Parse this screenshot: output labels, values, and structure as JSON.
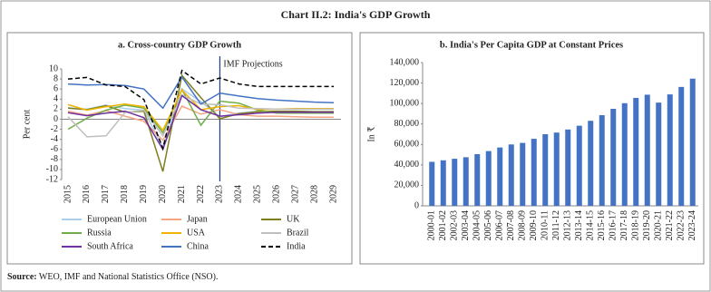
{
  "title": "Chart II.2: India's GDP Growth",
  "source_label": "Source:",
  "source": "WEO, IMF and National Statistics Office (NSO).",
  "chart_data": [
    {
      "type": "line",
      "title": "a. Cross-country GDP Growth",
      "y_label": "Per cent",
      "categories": [
        "2015",
        "2016",
        "2017",
        "2018",
        "2019",
        "2020",
        "2021",
        "2022",
        "2023",
        "2024",
        "2025",
        "2026",
        "2027",
        "2028",
        "2029"
      ],
      "annotation": {
        "text": "IMF Projections",
        "x": "2023"
      },
      "ylim": [
        -12,
        10
      ],
      "yticks": [
        -12,
        -10,
        -8,
        -6,
        -4,
        -2,
        0,
        2,
        4,
        6,
        8,
        10
      ],
      "legend": "bottom",
      "series": [
        {
          "name": "European Union",
          "color": "#a9cfe9",
          "values": [
            2.3,
            2.0,
            2.8,
            2.1,
            1.8,
            -5.6,
            6.0,
            3.5,
            0.5,
            1.2,
            1.6,
            1.5,
            1.4,
            1.3,
            1.3
          ]
        },
        {
          "name": "Japan",
          "color": "#f4a582",
          "values": [
            1.6,
            0.8,
            1.7,
            0.6,
            -0.4,
            -4.2,
            2.6,
            1.0,
            1.9,
            0.9,
            0.6,
            0.6,
            0.5,
            0.4,
            0.4
          ]
        },
        {
          "name": "UK",
          "color": "#7f7f1f",
          "values": [
            2.2,
            1.9,
            2.7,
            1.4,
            1.6,
            -10.4,
            8.7,
            4.3,
            0.1,
            1.1,
            1.5,
            1.6,
            1.6,
            1.5,
            1.5
          ]
        },
        {
          "name": "Russia",
          "color": "#70ad47",
          "values": [
            -2.0,
            0.2,
            1.8,
            2.8,
            2.2,
            -2.7,
            5.9,
            -1.2,
            3.6,
            3.2,
            1.8,
            1.2,
            1.2,
            1.2,
            1.2
          ]
        },
        {
          "name": "USA",
          "color": "#f0b400",
          "values": [
            2.9,
            1.8,
            2.5,
            3.0,
            2.5,
            -2.2,
            5.8,
            1.9,
            2.5,
            2.7,
            1.9,
            2.0,
            2.1,
            2.1,
            2.1
          ]
        },
        {
          "name": "Brazil",
          "color": "#bfbfbf",
          "values": [
            0.5,
            -3.5,
            -3.3,
            1.3,
            1.8,
            -3.3,
            4.8,
            3.0,
            2.9,
            2.2,
            2.1,
            2.0,
            2.0,
            2.0,
            2.0
          ]
        },
        {
          "name": "South Africa",
          "color": "#7030a0",
          "values": [
            1.3,
            0.7,
            1.2,
            1.6,
            0.3,
            -6.0,
            4.7,
            1.9,
            0.6,
            0.9,
            1.2,
            1.4,
            1.4,
            1.4,
            1.4
          ]
        },
        {
          "name": "China",
          "color": "#4472c4",
          "values": [
            7.0,
            6.8,
            6.9,
            6.7,
            6.0,
            2.2,
            8.4,
            3.0,
            5.2,
            4.6,
            4.1,
            3.8,
            3.6,
            3.4,
            3.3
          ]
        },
        {
          "name": "India",
          "color": "#000000",
          "dashed": true,
          "values": [
            8.0,
            8.3,
            6.8,
            6.5,
            3.9,
            -5.8,
            9.7,
            7.0,
            8.2,
            7.0,
            6.5,
            6.5,
            6.5,
            6.5,
            6.5
          ]
        }
      ]
    },
    {
      "type": "bar",
      "title": "b. India's Per Capita GDP at Constant Prices",
      "y_label": "In ₹",
      "categories": [
        "2000-01",
        "2001-02",
        "2002-03",
        "2003-04",
        "2004-05",
        "2005-06",
        "2006-07",
        "2007-08",
        "2008-09",
        "2009-10",
        "2010-11",
        "2011-12",
        "2012-13",
        "2013-14",
        "2014-15",
        "2015-16",
        "2016-17",
        "2017-18",
        "2018-19",
        "2019-20",
        "2020-21",
        "2021-22",
        "2022-23",
        "2023-24"
      ],
      "values": [
        43000,
        44500,
        46000,
        47500,
        50500,
        53500,
        57000,
        60000,
        61500,
        65500,
        70000,
        71600,
        74600,
        78300,
        83100,
        88600,
        94800,
        100300,
        105500,
        108600,
        100900,
        108900,
        116200,
        124300
      ],
      "color": "#4472c4",
      "ylim": [
        0,
        140000
      ],
      "yticks": [
        0,
        {
          "value": 20000,
          "label": "20,000"
        },
        {
          "value": 40000,
          "label": "40,000"
        },
        {
          "value": 60000,
          "label": "60,000"
        },
        {
          "value": 80000,
          "label": "80,000"
        },
        {
          "value": 100000,
          "label": "100,000"
        },
        {
          "value": 120000,
          "label": "120,000"
        },
        {
          "value": 140000,
          "label": "140,000"
        }
      ]
    }
  ]
}
